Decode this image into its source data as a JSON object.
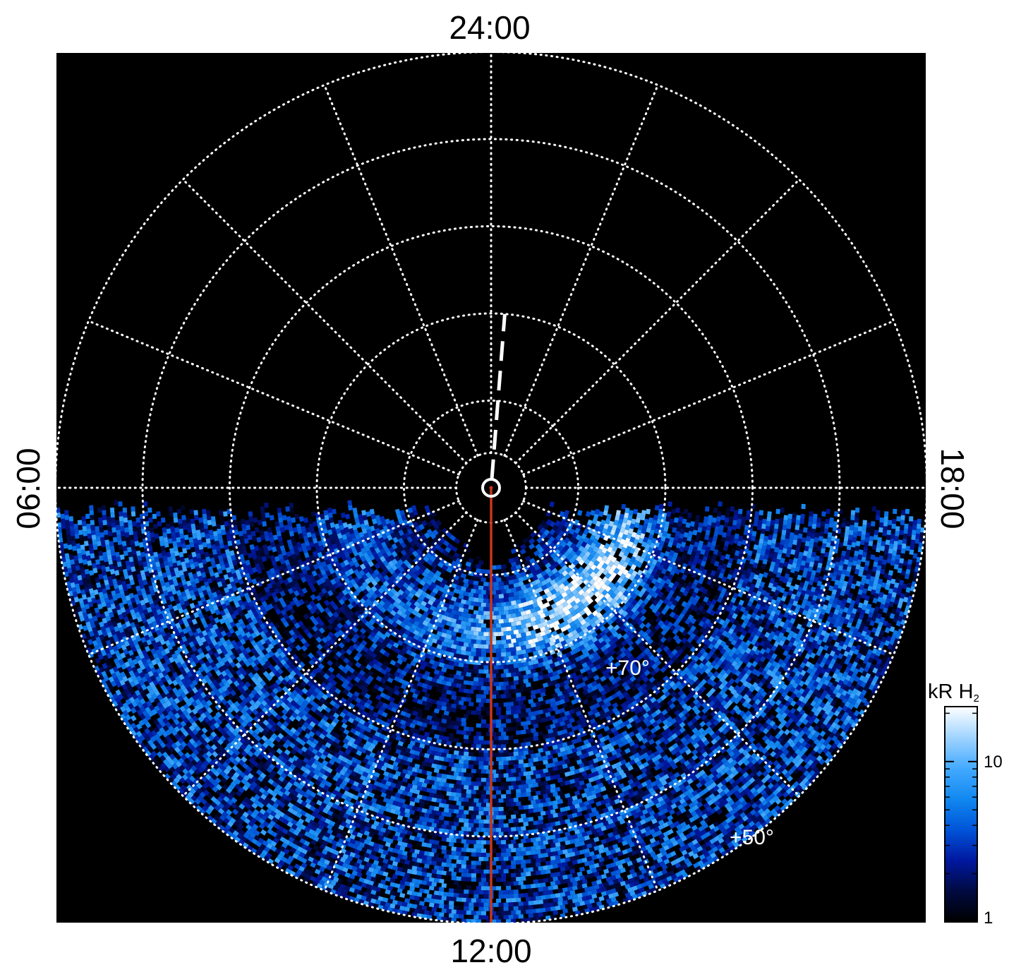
{
  "projection": {
    "type": "polar-auroral-map",
    "hemisphere": "north",
    "background": "#000000"
  },
  "time_labels": {
    "top": "24:00",
    "bottom": "12:00",
    "left": "06:00",
    "right": "18:00"
  },
  "latitude_labels": [
    {
      "text": "+70°",
      "latitude": 70
    },
    {
      "text": "+50°",
      "latitude": 50
    }
  ],
  "grid": {
    "latitude_circles_deg": [
      86,
      80,
      70,
      60,
      50,
      40
    ],
    "meridian_step_hours": 1.5,
    "style": "dotted",
    "color": "#ffffff"
  },
  "markers": {
    "dashed_meridian": {
      "local_time_hours": 23.7,
      "from_latitude": 89,
      "to_latitude": 70,
      "color": "#ffffff"
    },
    "solid_meridian": {
      "local_time_hours": 12.0,
      "from_latitude": 90,
      "to_latitude": 40,
      "color": "#c8361c"
    },
    "pole_marker": "circle"
  },
  "emission": {
    "coverage_start_colatitude_deg": 13,
    "main_arc_latitude_deg": 74,
    "peak_local_time_hours": 14.5,
    "colormap": [
      "#000000",
      "#000a40",
      "#0018a0",
      "#0055d8",
      "#1188f0",
      "#44aaff",
      "#a0d4ff",
      "#ffffff"
    ]
  },
  "colorbar": {
    "title_main": "kR H",
    "title_sub": "2",
    "scale": "log",
    "min": 1,
    "max": 22,
    "ticks": [
      {
        "value": 1,
        "label": "1"
      },
      {
        "value": 10,
        "label": "10"
      }
    ],
    "colors": [
      "#000000",
      "#000a40",
      "#0018a0",
      "#0055d8",
      "#1188f0",
      "#44aaff",
      "#a0d4ff",
      "#ffffff"
    ]
  }
}
